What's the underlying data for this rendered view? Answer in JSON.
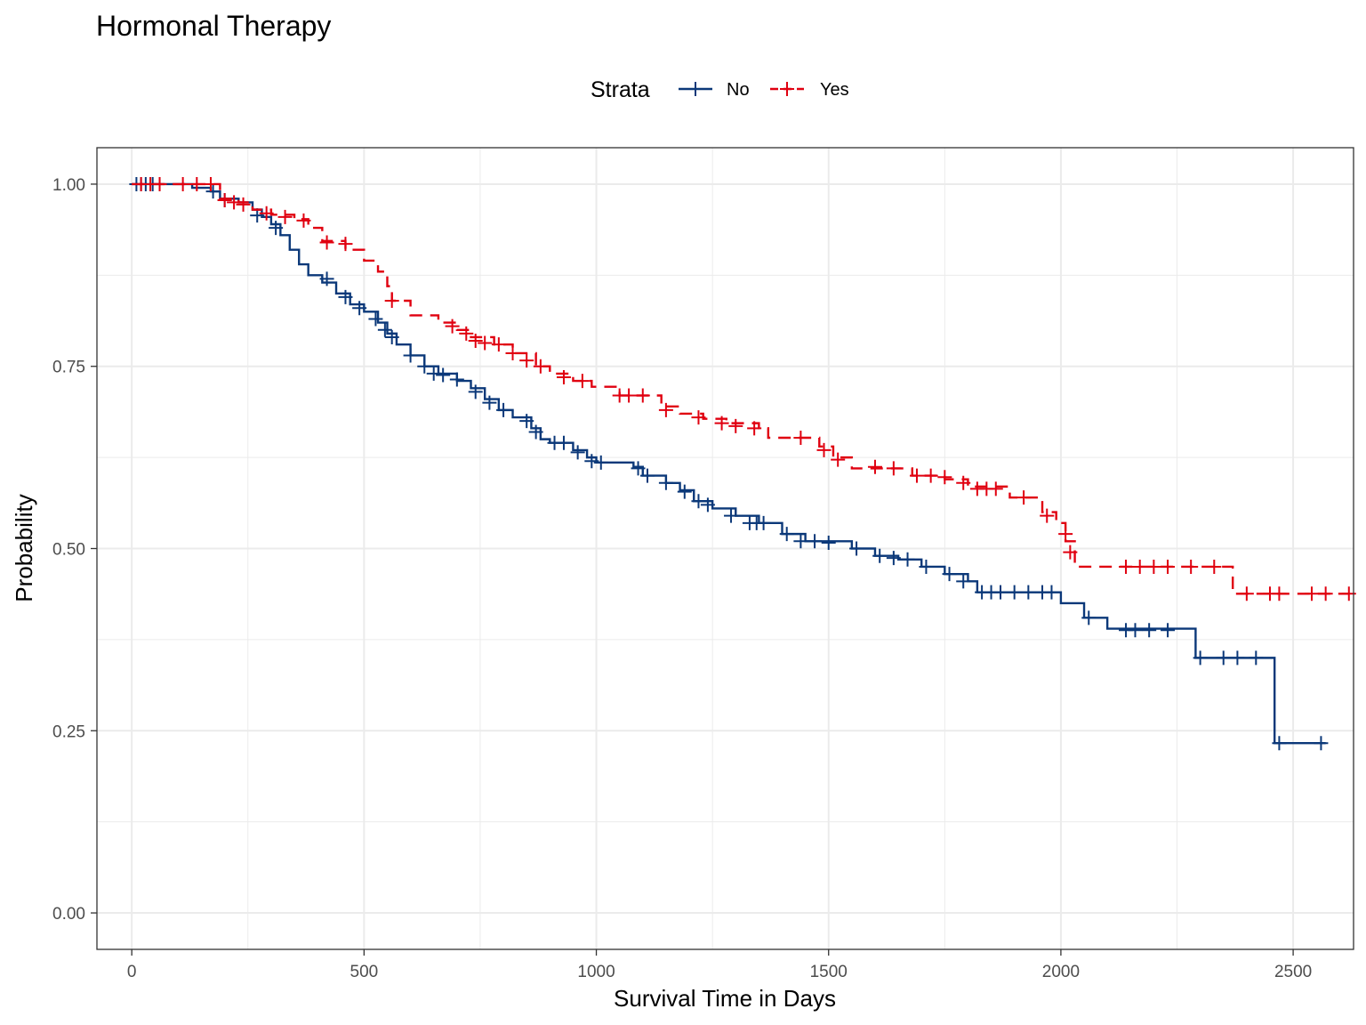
{
  "chart_data": {
    "type": "line",
    "title": "Hormonal Therapy",
    "xlabel": "Survival Time in Days",
    "ylabel": "Probability",
    "xlim": [
      -75,
      2630
    ],
    "ylim": [
      -0.05,
      1.05
    ],
    "x_ticks": [
      0,
      500,
      1000,
      1500,
      2000,
      2500
    ],
    "y_ticks": [
      0.0,
      0.25,
      0.5,
      0.75,
      1.0
    ],
    "x_tick_labels": [
      "0",
      "500",
      "1000",
      "1500",
      "2000",
      "2500"
    ],
    "y_tick_labels": [
      "0.00",
      "0.25",
      "0.50",
      "0.75",
      "1.00"
    ],
    "grid": true,
    "legend": {
      "title": "Strata",
      "position": "top"
    },
    "series": [
      {
        "name": "No",
        "color": "#0b3879",
        "dash": "solid",
        "steps": [
          [
            0,
            1.0
          ],
          [
            70,
            1.0
          ],
          [
            130,
            0.995
          ],
          [
            170,
            0.99
          ],
          [
            190,
            0.98
          ],
          [
            230,
            0.975
          ],
          [
            260,
            0.965
          ],
          [
            280,
            0.955
          ],
          [
            300,
            0.945
          ],
          [
            320,
            0.93
          ],
          [
            340,
            0.91
          ],
          [
            360,
            0.89
          ],
          [
            380,
            0.875
          ],
          [
            410,
            0.865
          ],
          [
            440,
            0.85
          ],
          [
            470,
            0.835
          ],
          [
            500,
            0.825
          ],
          [
            530,
            0.81
          ],
          [
            550,
            0.795
          ],
          [
            570,
            0.78
          ],
          [
            600,
            0.765
          ],
          [
            630,
            0.75
          ],
          [
            660,
            0.74
          ],
          [
            700,
            0.73
          ],
          [
            730,
            0.72
          ],
          [
            760,
            0.705
          ],
          [
            790,
            0.69
          ],
          [
            820,
            0.68
          ],
          [
            860,
            0.665
          ],
          [
            880,
            0.65
          ],
          [
            900,
            0.645
          ],
          [
            950,
            0.635
          ],
          [
            980,
            0.625
          ],
          [
            1000,
            0.618
          ],
          [
            1080,
            0.612
          ],
          [
            1100,
            0.6
          ],
          [
            1150,
            0.59
          ],
          [
            1180,
            0.58
          ],
          [
            1210,
            0.565
          ],
          [
            1250,
            0.555
          ],
          [
            1300,
            0.545
          ],
          [
            1350,
            0.535
          ],
          [
            1400,
            0.52
          ],
          [
            1450,
            0.51
          ],
          [
            1550,
            0.5
          ],
          [
            1600,
            0.49
          ],
          [
            1650,
            0.485
          ],
          [
            1700,
            0.475
          ],
          [
            1750,
            0.465
          ],
          [
            1800,
            0.455
          ],
          [
            1820,
            0.44
          ],
          [
            2000,
            0.425
          ],
          [
            2050,
            0.405
          ],
          [
            2100,
            0.39
          ],
          [
            2290,
            0.35
          ],
          [
            2460,
            0.233
          ],
          [
            2570,
            0.233
          ]
        ],
        "censors": [
          [
            10,
            1.0
          ],
          [
            20,
            1.0
          ],
          [
            30,
            1.0
          ],
          [
            45,
            1.0
          ],
          [
            60,
            1.0
          ],
          [
            175,
            0.99
          ],
          [
            200,
            0.978
          ],
          [
            270,
            0.957
          ],
          [
            310,
            0.94
          ],
          [
            420,
            0.87
          ],
          [
            460,
            0.845
          ],
          [
            490,
            0.83
          ],
          [
            525,
            0.815
          ],
          [
            545,
            0.8
          ],
          [
            560,
            0.79
          ],
          [
            600,
            0.765
          ],
          [
            630,
            0.75
          ],
          [
            650,
            0.74
          ],
          [
            670,
            0.738
          ],
          [
            700,
            0.732
          ],
          [
            740,
            0.715
          ],
          [
            770,
            0.7
          ],
          [
            800,
            0.69
          ],
          [
            850,
            0.675
          ],
          [
            870,
            0.66
          ],
          [
            910,
            0.645
          ],
          [
            930,
            0.645
          ],
          [
            960,
            0.632
          ],
          [
            990,
            0.62
          ],
          [
            1010,
            0.618
          ],
          [
            1090,
            0.61
          ],
          [
            1110,
            0.6
          ],
          [
            1150,
            0.59
          ],
          [
            1190,
            0.578
          ],
          [
            1220,
            0.565
          ],
          [
            1240,
            0.56
          ],
          [
            1290,
            0.545
          ],
          [
            1330,
            0.535
          ],
          [
            1345,
            0.535
          ],
          [
            1360,
            0.535
          ],
          [
            1410,
            0.52
          ],
          [
            1440,
            0.51
          ],
          [
            1470,
            0.51
          ],
          [
            1500,
            0.508
          ],
          [
            1560,
            0.5
          ],
          [
            1610,
            0.49
          ],
          [
            1640,
            0.487
          ],
          [
            1670,
            0.485
          ],
          [
            1710,
            0.475
          ],
          [
            1760,
            0.465
          ],
          [
            1790,
            0.455
          ],
          [
            1830,
            0.44
          ],
          [
            1850,
            0.44
          ],
          [
            1870,
            0.44
          ],
          [
            1900,
            0.44
          ],
          [
            1930,
            0.44
          ],
          [
            1960,
            0.44
          ],
          [
            1980,
            0.44
          ],
          [
            2060,
            0.405
          ],
          [
            2140,
            0.388
          ],
          [
            2160,
            0.388
          ],
          [
            2190,
            0.388
          ],
          [
            2230,
            0.388
          ],
          [
            2300,
            0.35
          ],
          [
            2350,
            0.35
          ],
          [
            2380,
            0.35
          ],
          [
            2420,
            0.35
          ],
          [
            2470,
            0.233
          ],
          [
            2560,
            0.233
          ]
        ]
      },
      {
        "name": "Yes",
        "color": "#e00010",
        "dash": "dashed",
        "steps": [
          [
            0,
            1.0
          ],
          [
            180,
            1.0
          ],
          [
            190,
            0.98
          ],
          [
            230,
            0.975
          ],
          [
            260,
            0.965
          ],
          [
            300,
            0.958
          ],
          [
            350,
            0.952
          ],
          [
            380,
            0.94
          ],
          [
            410,
            0.922
          ],
          [
            460,
            0.91
          ],
          [
            500,
            0.895
          ],
          [
            530,
            0.88
          ],
          [
            550,
            0.86
          ],
          [
            560,
            0.84
          ],
          [
            600,
            0.82
          ],
          [
            660,
            0.81
          ],
          [
            700,
            0.8
          ],
          [
            730,
            0.79
          ],
          [
            780,
            0.78
          ],
          [
            820,
            0.768
          ],
          [
            870,
            0.75
          ],
          [
            900,
            0.74
          ],
          [
            950,
            0.73
          ],
          [
            990,
            0.722
          ],
          [
            1050,
            0.71
          ],
          [
            1140,
            0.695
          ],
          [
            1180,
            0.685
          ],
          [
            1230,
            0.678
          ],
          [
            1280,
            0.672
          ],
          [
            1350,
            0.665
          ],
          [
            1370,
            0.652
          ],
          [
            1480,
            0.64
          ],
          [
            1510,
            0.625
          ],
          [
            1550,
            0.61
          ],
          [
            1680,
            0.6
          ],
          [
            1750,
            0.595
          ],
          [
            1800,
            0.585
          ],
          [
            1890,
            0.57
          ],
          [
            1960,
            0.55
          ],
          [
            1990,
            0.535
          ],
          [
            2010,
            0.51
          ],
          [
            2030,
            0.475
          ],
          [
            2370,
            0.438
          ],
          [
            2620,
            0.438
          ]
        ],
        "censors": [
          [
            20,
            1.0
          ],
          [
            40,
            1.0
          ],
          [
            60,
            1.0
          ],
          [
            110,
            1.0
          ],
          [
            140,
            1.0
          ],
          [
            170,
            1.0
          ],
          [
            200,
            0.978
          ],
          [
            220,
            0.975
          ],
          [
            240,
            0.972
          ],
          [
            290,
            0.96
          ],
          [
            330,
            0.955
          ],
          [
            370,
            0.95
          ],
          [
            420,
            0.92
          ],
          [
            460,
            0.918
          ],
          [
            560,
            0.84
          ],
          [
            690,
            0.805
          ],
          [
            720,
            0.795
          ],
          [
            740,
            0.785
          ],
          [
            760,
            0.782
          ],
          [
            790,
            0.78
          ],
          [
            820,
            0.768
          ],
          [
            850,
            0.758
          ],
          [
            880,
            0.75
          ],
          [
            930,
            0.735
          ],
          [
            970,
            0.73
          ],
          [
            1050,
            0.71
          ],
          [
            1070,
            0.71
          ],
          [
            1100,
            0.71
          ],
          [
            1150,
            0.69
          ],
          [
            1220,
            0.68
          ],
          [
            1270,
            0.672
          ],
          [
            1300,
            0.668
          ],
          [
            1340,
            0.665
          ],
          [
            1440,
            0.652
          ],
          [
            1490,
            0.635
          ],
          [
            1520,
            0.622
          ],
          [
            1600,
            0.612
          ],
          [
            1640,
            0.61
          ],
          [
            1690,
            0.6
          ],
          [
            1720,
            0.6
          ],
          [
            1750,
            0.598
          ],
          [
            1790,
            0.59
          ],
          [
            1820,
            0.582
          ],
          [
            1840,
            0.582
          ],
          [
            1860,
            0.582
          ],
          [
            1920,
            0.57
          ],
          [
            1970,
            0.545
          ],
          [
            2010,
            0.52
          ],
          [
            2020,
            0.495
          ],
          [
            2140,
            0.475
          ],
          [
            2170,
            0.475
          ],
          [
            2200,
            0.475
          ],
          [
            2230,
            0.475
          ],
          [
            2280,
            0.475
          ],
          [
            2330,
            0.475
          ],
          [
            2400,
            0.438
          ],
          [
            2450,
            0.438
          ],
          [
            2470,
            0.438
          ],
          [
            2540,
            0.438
          ],
          [
            2570,
            0.438
          ],
          [
            2620,
            0.438
          ]
        ]
      }
    ]
  }
}
